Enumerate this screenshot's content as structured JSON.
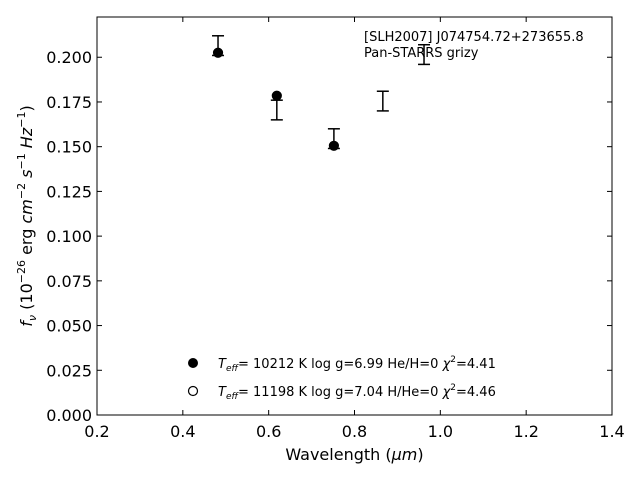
{
  "chart_data": {
    "type": "scatter",
    "annotation_lines": [
      "[SLH2007] J074754.72+273655.8",
      "Pan-STARRS grizy"
    ],
    "xlabel_text": "Wavelength (",
    "xlabel_unit": "μm",
    "xlabel_close": ")",
    "ylabel_parts": [
      "f",
      "ν",
      " (10",
      "−26",
      " erg ",
      "cm",
      "−2",
      " s",
      "−1",
      " Hz",
      "−1",
      ")"
    ],
    "xlim": [
      0.2,
      1.4
    ],
    "ylim": [
      0.0,
      0.2225
    ],
    "x_ticks": [
      "0.2",
      "0.4",
      "0.6",
      "0.8",
      "1.0",
      "1.2",
      "1.4"
    ],
    "y_ticks": [
      "0.000",
      "0.025",
      "0.050",
      "0.075",
      "0.100",
      "0.125",
      "0.150",
      "0.175",
      "0.200"
    ],
    "observed": {
      "x": [
        0.482,
        0.619,
        0.752,
        0.866,
        0.962
      ],
      "y": [
        0.2065,
        0.1705,
        0.1545,
        0.1755,
        0.2015
      ],
      "yerr": [
        0.0055,
        0.0055,
        0.0055,
        0.0055,
        0.0055
      ]
    },
    "series": [
      {
        "marker": "filled-circle",
        "x": [
          0.482,
          0.619,
          0.752
        ],
        "y": [
          0.2025,
          0.1785,
          0.1505
        ],
        "legend_parts": [
          "T",
          "eff",
          "= 10212 K  log g=6.99  He/H=0  ",
          "χ",
          "2",
          "=4.41"
        ]
      },
      {
        "marker": "open-circle",
        "x": [],
        "y": [],
        "legend_parts": [
          "T",
          "eff",
          "= 11198 K  log g=7.04  H/He=0  ",
          "χ",
          "2",
          "=4.46"
        ]
      }
    ],
    "legend_location": "lower-center",
    "grid": false
  }
}
